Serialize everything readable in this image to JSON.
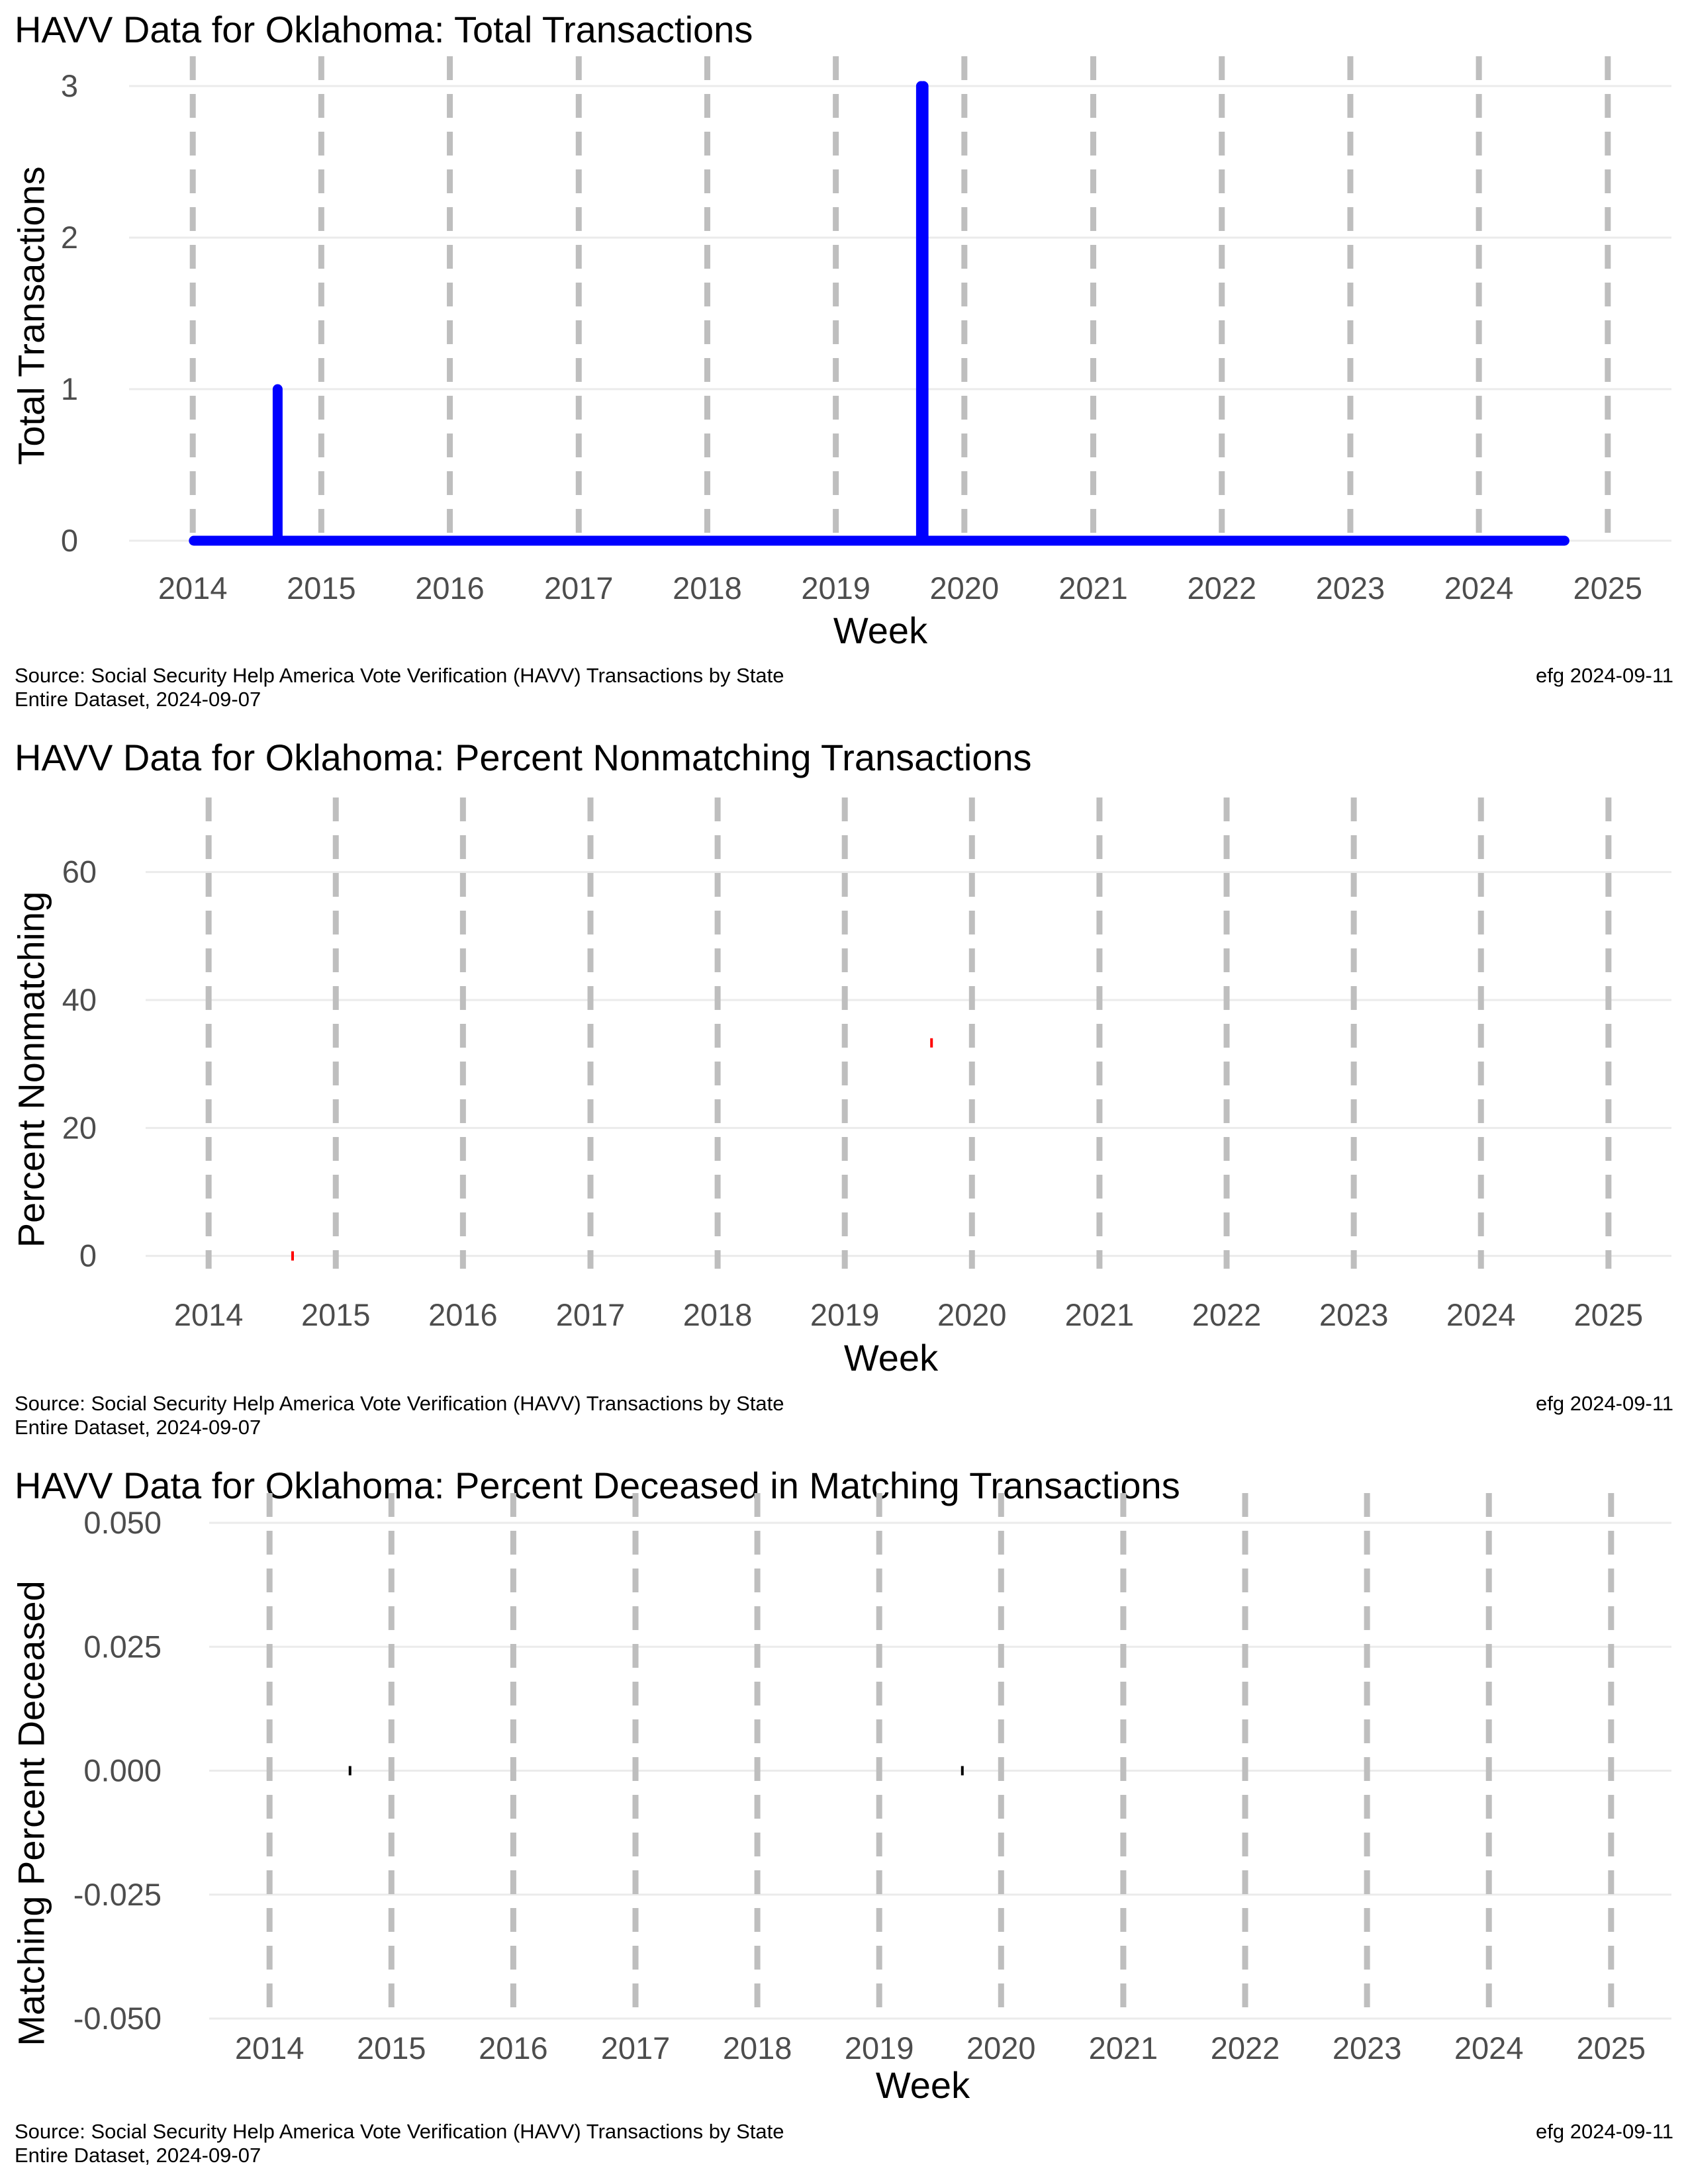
{
  "source_line1": "Source:  Social Security Help America Vote Verification (HAVV) Transactions by State",
  "source_line2": "Entire Dataset, 2024-09-07",
  "credit": "efg 2024-09-11",
  "colors": {
    "grid": "#ebebeb",
    "year_marker": "#bebebe",
    "tick_text": "#4d4d4d"
  },
  "chart_data": [
    {
      "type": "line",
      "title": "HAVV Data for Oklahoma:  Total Transactions",
      "xlabel": "Week",
      "ylabel": "Total Transactions",
      "x_ticks": [
        "2014",
        "2015",
        "2016",
        "2017",
        "2018",
        "2019",
        "2020",
        "2021",
        "2022",
        "2023",
        "2024",
        "2025"
      ],
      "xlim": [
        "2014-01-01",
        "2025-01-01"
      ],
      "y_ticks": [
        "0",
        "1",
        "2",
        "3"
      ],
      "ylim": [
        0,
        3
      ],
      "year_markers": "dashed vertical line at each January 1",
      "grid": "horizontal",
      "series": [
        {
          "color": "#0000ff",
          "baseline_from": "2014-01-04",
          "baseline_to": "2024-08-31",
          "baseline_value": 0,
          "x": [
            "2014-08-30",
            "2019-08-31",
            "2019-09-07"
          ],
          "values": [
            1,
            3,
            3
          ]
        }
      ]
    },
    {
      "type": "scatter",
      "title": "HAVV Data for Oklahoma:  Percent Nonmatching Transactions",
      "xlabel": "Week",
      "ylabel": "Percent Nonmatching",
      "x_ticks": [
        "2014",
        "2015",
        "2016",
        "2017",
        "2018",
        "2019",
        "2020",
        "2021",
        "2022",
        "2023",
        "2024",
        "2025"
      ],
      "xlim": [
        "2014-01-01",
        "2025-01-01"
      ],
      "y_ticks": [
        "0",
        "20",
        "40",
        "60"
      ],
      "ylim": [
        -2,
        67
      ],
      "year_markers": "dashed vertical line at each January 1",
      "grid": "horizontal",
      "series": [
        {
          "color": "#ff0000",
          "x": [
            "2014-08-30",
            "2019-09-07"
          ],
          "values": [
            0,
            33.3
          ]
        }
      ]
    },
    {
      "type": "scatter",
      "title": "HAVV Data for Oklahoma:  Percent Deceased in Matching Transactions",
      "xlabel": "Week",
      "ylabel": "Matching Percent Deceased",
      "x_ticks": [
        "2014",
        "2015",
        "2016",
        "2017",
        "2018",
        "2019",
        "2020",
        "2021",
        "2022",
        "2023",
        "2024",
        "2025"
      ],
      "xlim": [
        "2014-01-01",
        "2025-01-01"
      ],
      "y_ticks": [
        "0.050",
        "0.025",
        "0.000",
        "-0.025",
        "-0.050"
      ],
      "ylim": [
        -0.05,
        0.05
      ],
      "year_markers": "dashed vertical line at each January 1",
      "grid": "horizontal",
      "series": [
        {
          "color": "#000000",
          "x": [
            "2014-08-30",
            "2019-09-07"
          ],
          "values": [
            0,
            0
          ]
        }
      ]
    }
  ]
}
